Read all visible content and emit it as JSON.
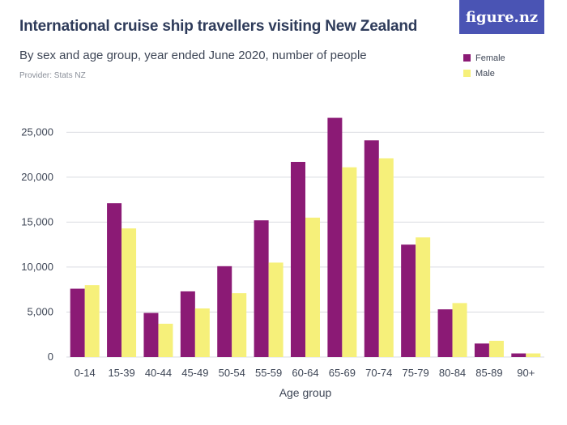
{
  "header": {
    "title": "International cruise ship travellers visiting New Zealand",
    "subtitle": "By sex and age group, year ended June 2020, number of people",
    "provider": "Provider: Stats NZ",
    "logo": "figure.nz"
  },
  "colors": {
    "female": "#8b1a75",
    "male": "#f6f07a",
    "logo_bg": "#4a54b4"
  },
  "chart_data": {
    "type": "bar",
    "xlabel": "Age group",
    "ylabel": "",
    "ylim": [
      0,
      28000
    ],
    "yticks": [
      0,
      5000,
      10000,
      15000,
      20000,
      25000
    ],
    "ytick_labels": [
      "0",
      "5,000",
      "10,000",
      "15,000",
      "20,000",
      "25,000"
    ],
    "grid": true,
    "legend_position": "top-right",
    "categories": [
      "0-14",
      "15-39",
      "40-44",
      "45-49",
      "50-54",
      "55-59",
      "60-64",
      "65-69",
      "70-74",
      "75-79",
      "80-84",
      "85-89",
      "90+"
    ],
    "series": [
      {
        "name": "Female",
        "values": [
          7600,
          17100,
          4900,
          7300,
          10100,
          15200,
          21700,
          26600,
          24100,
          12500,
          5300,
          1500,
          400
        ]
      },
      {
        "name": "Male",
        "values": [
          8000,
          14300,
          3700,
          5400,
          7100,
          10500,
          15500,
          21100,
          22100,
          13300,
          6000,
          1800,
          400
        ]
      }
    ]
  }
}
